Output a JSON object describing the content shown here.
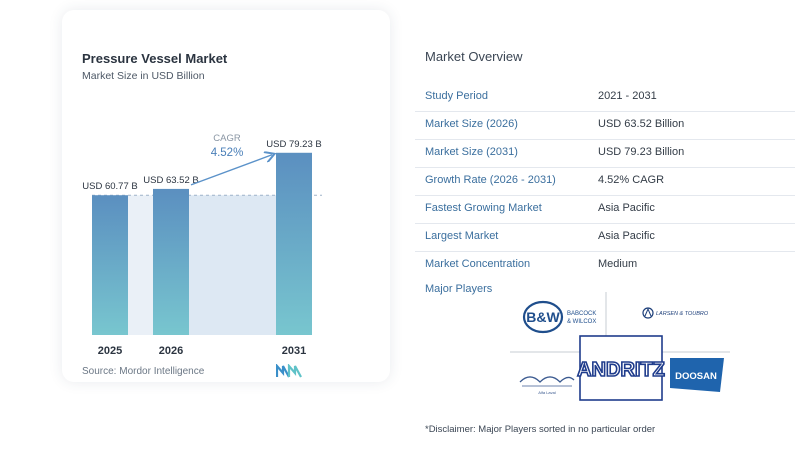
{
  "chart_data": {
    "type": "bar",
    "title": "Pressure Vessel Market",
    "subtitle": "Market Size in USD Billion",
    "categories": [
      "2025",
      "2026",
      "2031"
    ],
    "values": [
      60.77,
      63.52,
      79.23
    ],
    "value_labels": [
      "USD 60.77 B",
      "USD 63.52 B",
      "USD 79.23 B"
    ],
    "cagr_label": "CAGR",
    "cagr_value": "4.52%",
    "ylim": [
      0,
      100
    ],
    "colors": {
      "bar_top": "#5b8fc0",
      "bar_bottom": "#78c6cf",
      "shade": "#dde8f3",
      "arrow": "#5b92c9"
    }
  },
  "source": "Source:  Mordor Intelligence",
  "overview": {
    "title": "Market Overview",
    "rows": [
      {
        "label": "Study Period",
        "value": "2021 - 2031"
      },
      {
        "label": "Market Size (2026)",
        "value": "USD 63.52 Billion"
      },
      {
        "label": "Market Size (2031)",
        "value": "USD 79.23 Billion"
      },
      {
        "label": "Growth Rate (2026 - 2031)",
        "value": "4.52% CAGR"
      },
      {
        "label": "Fastest Growing Market",
        "value": "Asia Pacific"
      },
      {
        "label": "Largest Market",
        "value": "Asia Pacific"
      },
      {
        "label": "Market Concentration",
        "value": "Medium"
      }
    ],
    "major_players_title": "Major Players",
    "players": {
      "bw_mark": "B&W",
      "bw_name_1": "BABCOCK",
      "bw_name_2": "& WILCOX",
      "lt_name": "LARSEN & TOUBRO",
      "alfa_name": "Alfa Laval",
      "andritz_name": "ANDRITZ",
      "doosan_name": "DOOSAN"
    },
    "disclaimer": "*Disclaimer: Major Players sorted in no particular order"
  }
}
